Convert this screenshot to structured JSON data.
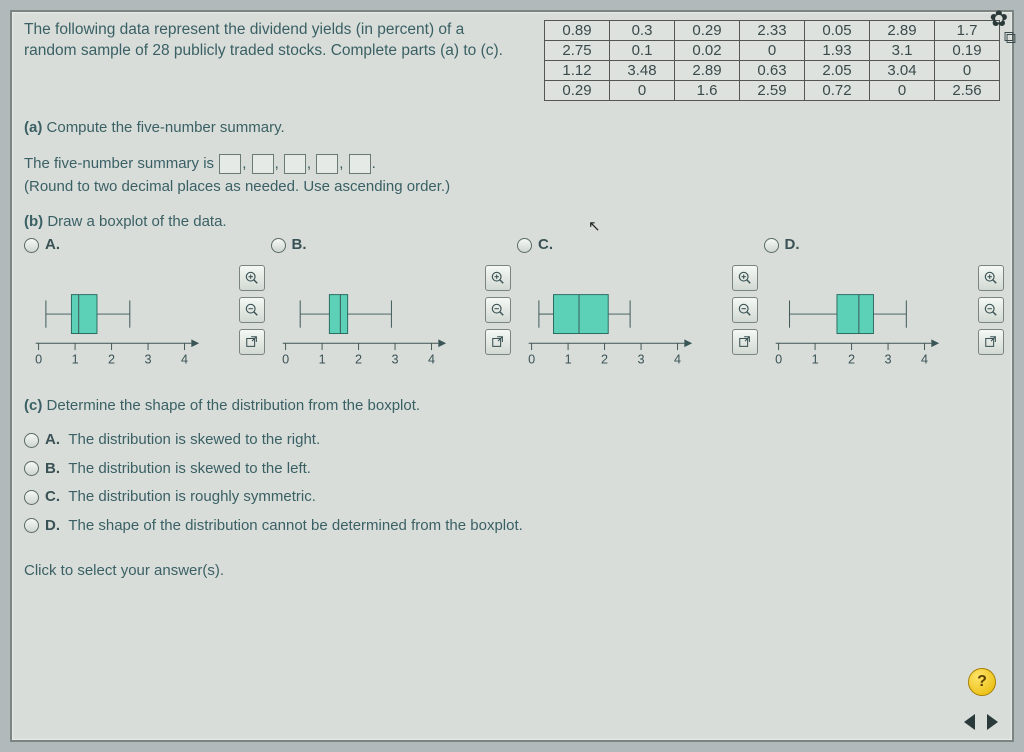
{
  "intro": {
    "line1": "The following data represent the dividend yields (in percent) of a",
    "line2": "random sample of 28 publicly traded stocks. Complete parts (a) to (c)."
  },
  "data_table": {
    "rows": [
      [
        "0.89",
        "0.3",
        "0.29",
        "2.33",
        "0.05",
        "2.89",
        "1.7"
      ],
      [
        "2.75",
        "0.1",
        "0.02",
        "0",
        "1.93",
        "3.1",
        "0.19"
      ],
      [
        "1.12",
        "3.48",
        "2.89",
        "0.63",
        "2.05",
        "3.04",
        "0"
      ],
      [
        "0.29",
        "0",
        "1.6",
        "2.59",
        "0.72",
        "0",
        "2.56"
      ]
    ],
    "cell_bg": "#dde2df",
    "border_color": "#555555"
  },
  "parts": {
    "a": {
      "label": "(a)",
      "text": "Compute the five-number summary."
    },
    "a_line": {
      "prefix": "The five-number summary is",
      "suffix": "."
    },
    "a_note": "(Round to two decimal places as needed. Use ascending order.)",
    "b": {
      "label": "(b)",
      "text": "Draw a boxplot of the data."
    },
    "c": {
      "label": "(c)",
      "text": "Determine the shape of the distribution from the boxplot."
    }
  },
  "options_b": {
    "letters": [
      "A.",
      "B.",
      "C.",
      "D."
    ],
    "axis": {
      "min": 0,
      "max": 4,
      "ticks": [
        0,
        1,
        2,
        3,
        4
      ]
    },
    "box_color": "#5dd1b8",
    "plots": [
      {
        "min": 0.2,
        "q1": 0.9,
        "med": 1.1,
        "q3": 1.6,
        "max": 2.5
      },
      {
        "min": 0.4,
        "q1": 1.2,
        "med": 1.5,
        "q3": 1.7,
        "max": 2.9
      },
      {
        "min": 0.2,
        "q1": 0.6,
        "med": 1.3,
        "q3": 2.1,
        "max": 2.7
      },
      {
        "min": 0.3,
        "q1": 1.6,
        "med": 2.2,
        "q3": 2.6,
        "max": 3.5
      }
    ]
  },
  "options_c": {
    "A": "The distribution is skewed to the right.",
    "B": "The distribution is skewed to the left.",
    "C": "The distribution is roughly symmetric.",
    "D": "The shape of the distribution cannot be determined from the boxplot."
  },
  "footer": {
    "hint": "Click to select your answer(s).",
    "help": "?"
  },
  "icons": {
    "zoom_in": "zoom-in-icon",
    "zoom_out": "zoom-out-icon",
    "popout": "popout-icon",
    "gear": "gear-icon",
    "copy": "copy-icon"
  }
}
